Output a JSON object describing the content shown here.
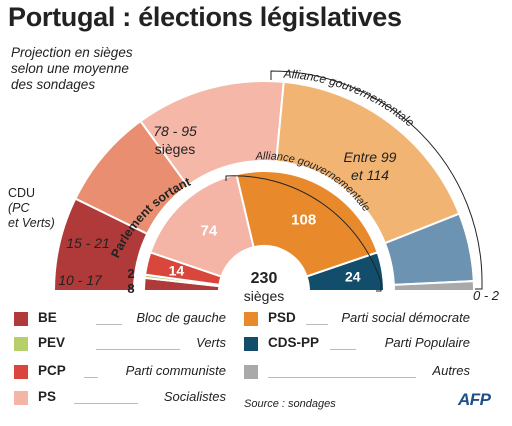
{
  "title": "Portugal : élections législatives",
  "subtitle_lines": [
    "Projection en sièges",
    "selon une moyenne",
    "des sondages"
  ],
  "cdu_label": {
    "line1": "CDU",
    "line2": "(PC",
    "line3": "et Verts)"
  },
  "outer_alliance_label": "Alliance gouvernementale",
  "inner_alliance_label": "Alliance gouvernementale",
  "outgoing_label": "Parlement sortant",
  "center_total": {
    "value": "230",
    "unit": "sièges"
  },
  "source": "Source : sondages",
  "afp": "AFP",
  "colors": {
    "BE": "#b03a3a",
    "PEV": "#b6cf6a",
    "PCP": "#d9463b",
    "PS": "#f4b4a6",
    "PSD": "#e88a2c",
    "CDS-PP": "#124e6c",
    "Autres": "#a9a9a9",
    "CDU_outer": "#e98e70",
    "PS_outer": "#f5b8a8",
    "Alliance_outer": "#f2b473",
    "CDS_outer": "#6d93b3"
  },
  "chart_data": [
    {
      "type": "pie",
      "name": "Parlement sortant",
      "total": 230,
      "slices": [
        {
          "party": "BE",
          "value": 8,
          "label": "8",
          "color": "#b03a3a"
        },
        {
          "party": "PEV",
          "value": 2,
          "label": "2",
          "color": "#b6cf6a"
        },
        {
          "party": "PCP",
          "value": 14,
          "label": "14",
          "color": "#d9463b"
        },
        {
          "party": "PS",
          "value": 74,
          "label": "74",
          "color": "#f4b4a6"
        },
        {
          "party": "PSD",
          "value": 108,
          "label": "108",
          "color": "#e88a2c"
        },
        {
          "party": "CDS-PP",
          "value": 24,
          "label": "24",
          "color": "#124e6c"
        }
      ]
    },
    {
      "type": "pie",
      "name": "Projection",
      "slices": [
        {
          "party": "BE",
          "range": [
            10,
            17
          ],
          "label": "10 - 17"
        },
        {
          "party": "CDU",
          "range": [
            15,
            21
          ],
          "label": "15 - 21"
        },
        {
          "party": "PS",
          "range": [
            78,
            95
          ],
          "label": "78 - 95",
          "label2": "sièges"
        },
        {
          "party": "Alliance gouvernementale",
          "range": [
            99,
            114
          ],
          "label": "Entre 99",
          "label2": "et 114"
        },
        {
          "party": "Autres",
          "range": [
            0,
            2
          ],
          "label": "0 - 2"
        }
      ]
    }
  ],
  "legend": [
    {
      "abbr": "BE",
      "name": "Bloc de gauche",
      "color": "#b03a3a"
    },
    {
      "abbr": "PEV",
      "name": "Verts",
      "color": "#b6cf6a"
    },
    {
      "abbr": "PCP",
      "name": "Parti communiste",
      "color": "#d9463b"
    },
    {
      "abbr": "PS",
      "name": "Socialistes",
      "color": "#f4b4a6"
    },
    {
      "abbr": "PSD",
      "name": "Parti social démocrate",
      "color": "#e88a2c"
    },
    {
      "abbr": "CDS-PP",
      "name": "Parti Populaire",
      "color": "#124e6c"
    },
    {
      "abbr": "",
      "name": "Autres",
      "color": "#a9a9a9"
    }
  ]
}
